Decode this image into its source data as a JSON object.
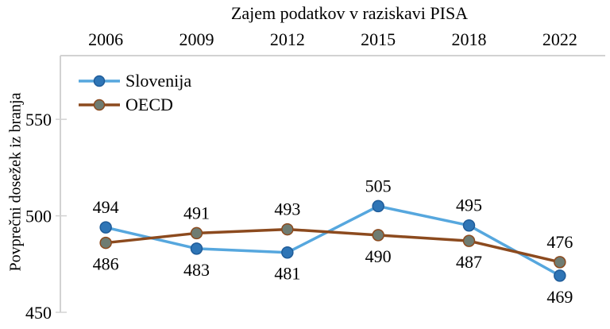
{
  "chart_data": {
    "type": "line",
    "title": "Zajem podatkov v raziskavi PISA",
    "ylabel": "Povprečni dosežek iz branja",
    "xlabel_position": "top",
    "categories": [
      "2006",
      "2009",
      "2012",
      "2015",
      "2018",
      "2022"
    ],
    "series": [
      {
        "name": "Slovenija",
        "values": [
          494,
          483,
          481,
          505,
          495,
          469
        ],
        "line_color": "#56A7DE",
        "marker_color": "#2E75B6",
        "marker_border": "#1F5C99"
      },
      {
        "name": "OECD",
        "values": [
          486,
          491,
          493,
          490,
          487,
          476
        ],
        "line_color": "#8C4A1E",
        "marker_color": "#6F7C72",
        "marker_border": "#8C4A1E"
      }
    ],
    "y_ticks": [
      550,
      500,
      450
    ],
    "ylim": [
      450,
      583
    ],
    "data_labels": true,
    "legend_position": "top-left-inside",
    "grid": "off",
    "axis_color": "#D2D2D2",
    "text_color": "#000000"
  }
}
